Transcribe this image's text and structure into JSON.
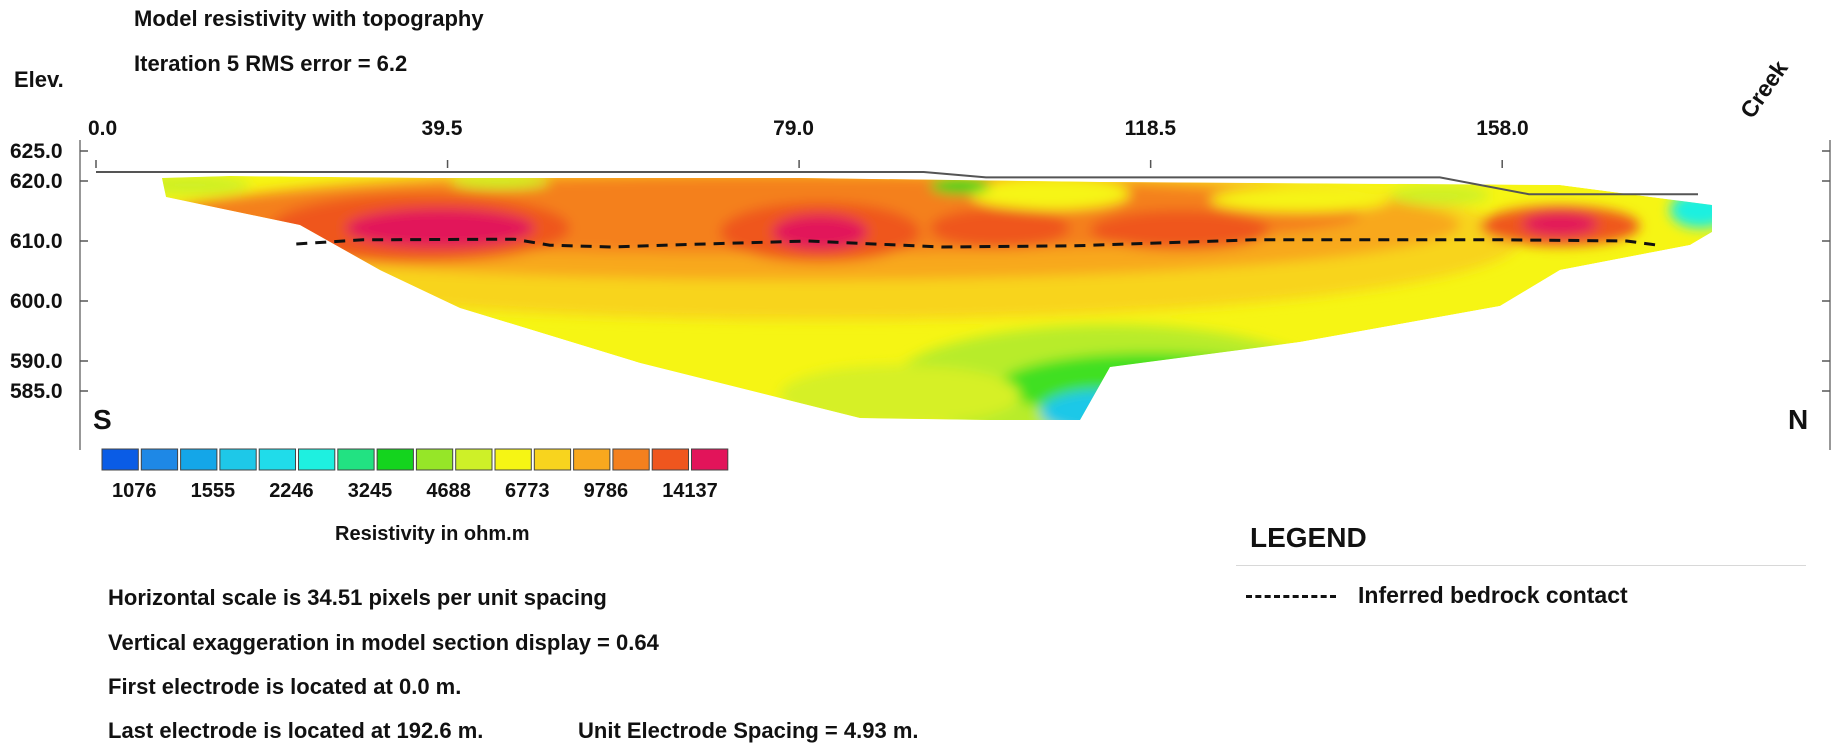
{
  "chart_data": {
    "type": "heatmap",
    "title": "Model resistivity with topography",
    "subtitle": "Iteration 5 RMS error = 6.2",
    "ylabel": "Elev.",
    "x_ticks": [
      "0.0",
      "39.5",
      "79.0",
      "118.5",
      "158.0"
    ],
    "x_tick_values": [
      0.0,
      39.5,
      79.0,
      118.5,
      158.0
    ],
    "xlim": [
      0,
      192.6
    ],
    "y_ticks": [
      "625.0",
      "620.0",
      "610.0",
      "600.0",
      "590.0",
      "585.0"
    ],
    "y_tick_values": [
      625.0,
      620.0,
      610.0,
      600.0,
      590.0,
      585.0
    ],
    "ylim": [
      575,
      627
    ],
    "direction_left": "S",
    "direction_right": "N",
    "annotation": "Creek",
    "colorbar": {
      "colors": [
        "#0a5ce6",
        "#1e88e6",
        "#14a6e8",
        "#1ec8e8",
        "#20dcea",
        "#1ef0e0",
        "#22e282",
        "#14d41e",
        "#96e628",
        "#cef028",
        "#f6f514",
        "#f8d41e",
        "#f8a81e",
        "#f4801e",
        "#ef561e",
        "#e2145a"
      ],
      "labels": [
        "1076",
        "1555",
        "2246",
        "3245",
        "4688",
        "6773",
        "9786",
        "14137"
      ],
      "title": "Resistivity in ohm.m"
    },
    "topography": [
      [
        0,
        621.5
      ],
      [
        93,
        621.5
      ],
      [
        100,
        620.6
      ],
      [
        151,
        620.6
      ],
      [
        161,
        617.8
      ],
      [
        180,
        617.8
      ]
    ],
    "bedrock_contact": [
      [
        22.5,
        609.5
      ],
      [
        30,
        610.2
      ],
      [
        47,
        610.3
      ],
      [
        51,
        609.3
      ],
      [
        58,
        609.0
      ],
      [
        66,
        609.4
      ],
      [
        80,
        610.0
      ],
      [
        95,
        609.0
      ],
      [
        110,
        609.2
      ],
      [
        130,
        610.2
      ],
      [
        158,
        610.2
      ],
      [
        172,
        610.0
      ],
      [
        176,
        609.2
      ]
    ],
    "legend": {
      "title": "LEGEND",
      "entry": "Inferred bedrock contact"
    },
    "notes": [
      "Horizontal scale is 34.51 pixels per unit spacing",
      "Vertical exaggeration in model section display = 0.64",
      "First electrode is located at 0.0  m.",
      "Last electrode is located at 192.6 m.",
      "Unit Electrode Spacing = 4.93 m."
    ]
  }
}
